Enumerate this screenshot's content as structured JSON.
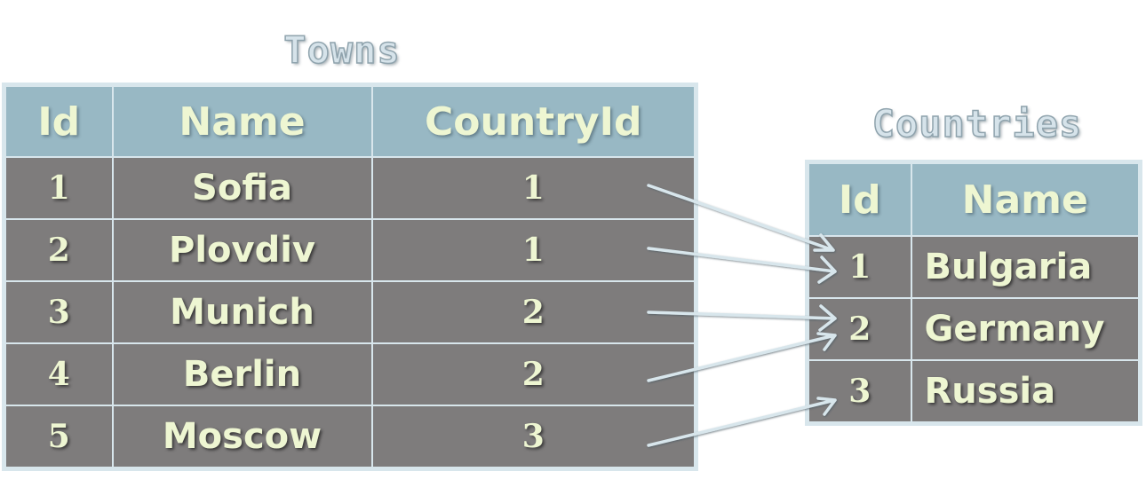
{
  "towns": {
    "title": "Towns",
    "columns": [
      "Id",
      "Name",
      "CountryId"
    ],
    "rows": [
      {
        "id": "1",
        "name": "Sofia",
        "country_id": "1"
      },
      {
        "id": "2",
        "name": "Plovdiv",
        "country_id": "1"
      },
      {
        "id": "3",
        "name": "Munich",
        "country_id": "2"
      },
      {
        "id": "4",
        "name": "Berlin",
        "country_id": "2"
      },
      {
        "id": "5",
        "name": "Moscow",
        "country_id": "3"
      }
    ]
  },
  "countries": {
    "title": "Countries",
    "columns": [
      "Id",
      "Name"
    ],
    "rows": [
      {
        "id": "1",
        "name": "Bulgaria"
      },
      {
        "id": "2",
        "name": "Germany"
      },
      {
        "id": "3",
        "name": "Russia"
      }
    ]
  },
  "colors": {
    "header_bg": "#98b8c4",
    "cell_bg": "#7e7c7c",
    "border": "#d8e6ec",
    "text": "#eef6d2",
    "arrow": "#d8e6ec"
  }
}
